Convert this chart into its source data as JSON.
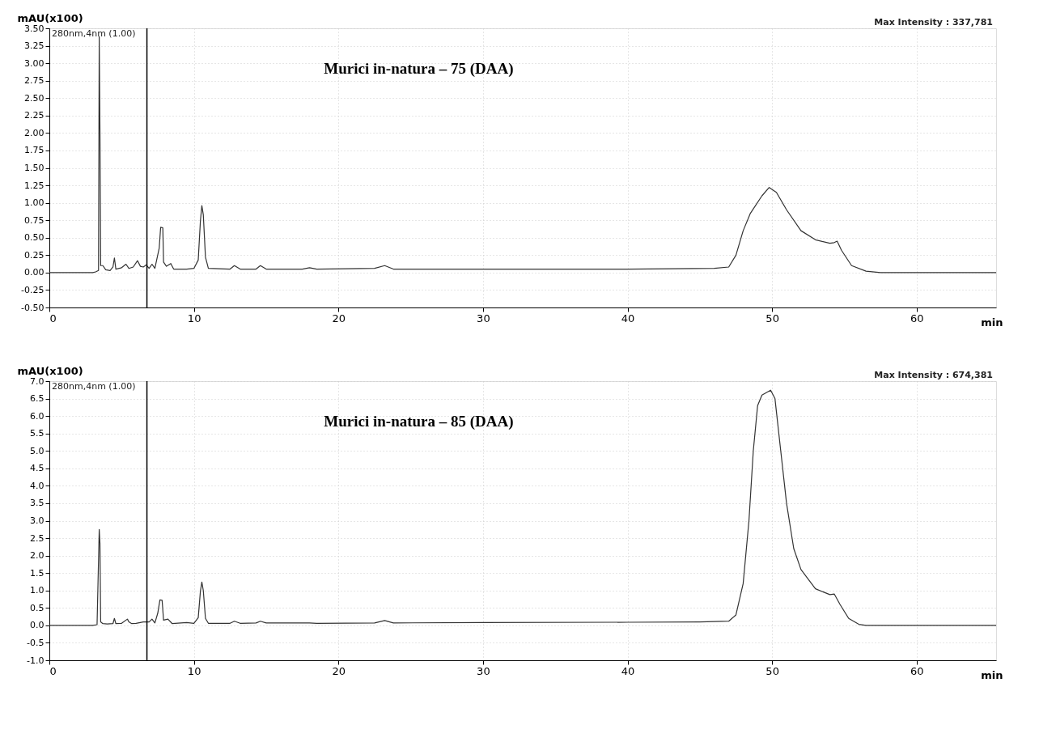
{
  "chart_data": [
    {
      "type": "line",
      "title": "Murici in-natura – 75 (DAA)",
      "xlabel": "min",
      "ylabel": "mAU(x100)",
      "annotations": [
        "280nm,4nm (1.00)",
        "Max Intensity : 337,781"
      ],
      "xlim": [
        0,
        65.5
      ],
      "xticks": [
        0,
        10,
        20,
        30,
        40,
        50,
        60
      ],
      "ylim": [
        -0.5,
        3.5
      ],
      "yticks": [
        {
          "value": -0.5,
          "label": "-0.50"
        },
        {
          "value": -0.25,
          "label": "-0.25"
        },
        {
          "value": 0,
          "label": "0.00"
        },
        {
          "value": 0.25,
          "label": "0.25"
        },
        {
          "value": 0.5,
          "label": "0.50"
        },
        {
          "value": 0.75,
          "label": "0.75"
        },
        {
          "value": 1,
          "label": "1.00"
        },
        {
          "value": 1.25,
          "label": "1.25"
        },
        {
          "value": 1.5,
          "label": "1.50"
        },
        {
          "value": 1.75,
          "label": "1.75"
        },
        {
          "value": 2,
          "label": "2.00"
        },
        {
          "value": 2.25,
          "label": "2.25"
        },
        {
          "value": 2.5,
          "label": "2.50"
        },
        {
          "value": 2.75,
          "label": "2.75"
        },
        {
          "value": 3,
          "label": "3.00"
        },
        {
          "value": 3.25,
          "label": "3.25"
        },
        {
          "value": 3.5,
          "label": "3.50"
        }
      ],
      "grid": true,
      "ref_lines": [
        {
          "axis": "x",
          "value": 6.75,
          "color": "#000000"
        }
      ],
      "series": [
        {
          "color": "#333333",
          "x": [
            0,
            3.0,
            3.2,
            3.4,
            3.45,
            3.5,
            3.55,
            3.7,
            3.9,
            4.2,
            4.4,
            4.5,
            4.6,
            5.0,
            5.3,
            5.5,
            5.8,
            6.1,
            6.3,
            6.5,
            6.7,
            6.9,
            7.1,
            7.3,
            7.6,
            7.7,
            7.85,
            7.9,
            8.1,
            8.4,
            8.6,
            9.5,
            10.0,
            10.3,
            10.45,
            10.55,
            10.65,
            10.8,
            11.0,
            12.5,
            12.8,
            13.2,
            14.3,
            14.6,
            15.0,
            17.5,
            18.0,
            18.5,
            22.5,
            23.2,
            23.8,
            29.5,
            40,
            46,
            47,
            47.5,
            48,
            48.5,
            49.3,
            49.8,
            50.3,
            51,
            52,
            53,
            54,
            54.3,
            54.5,
            54.8,
            55.5,
            56.5,
            57.5,
            65.5
          ],
          "values": [
            0,
            0,
            0.01,
            0.03,
            3.38,
            2.03,
            0.1,
            0.1,
            0.04,
            0.03,
            0.08,
            0.21,
            0.05,
            0.07,
            0.12,
            0.06,
            0.08,
            0.17,
            0.09,
            0.08,
            0.11,
            0.06,
            0.12,
            0.06,
            0.35,
            0.65,
            0.64,
            0.15,
            0.09,
            0.13,
            0.05,
            0.05,
            0.06,
            0.18,
            0.74,
            0.96,
            0.83,
            0.22,
            0.06,
            0.05,
            0.1,
            0.05,
            0.05,
            0.1,
            0.05,
            0.05,
            0.07,
            0.05,
            0.06,
            0.1,
            0.05,
            0.05,
            0.05,
            0.06,
            0.08,
            0.25,
            0.6,
            0.85,
            1.1,
            1.22,
            1.15,
            0.9,
            0.6,
            0.47,
            0.42,
            0.43,
            0.45,
            0.32,
            0.1,
            0.02,
            0,
            0
          ]
        }
      ]
    },
    {
      "type": "line",
      "title": "Murici in-natura – 85 (DAA)",
      "xlabel": "min",
      "ylabel": "mAU(x100)",
      "annotations": [
        "280nm,4nm (1.00)",
        "Max Intensity : 674,381"
      ],
      "xlim": [
        0,
        65.5
      ],
      "xticks": [
        0,
        10,
        20,
        30,
        40,
        50,
        60
      ],
      "ylim": [
        -1,
        7
      ],
      "yticks": [
        {
          "value": -1,
          "label": "-1.0"
        },
        {
          "value": -0.5,
          "label": "-0.5"
        },
        {
          "value": 0,
          "label": "0.0"
        },
        {
          "value": 0.5,
          "label": "0.5"
        },
        {
          "value": 1,
          "label": "1.0"
        },
        {
          "value": 1.5,
          "label": "1.5"
        },
        {
          "value": 2,
          "label": "2.0"
        },
        {
          "value": 2.5,
          "label": "2.5"
        },
        {
          "value": 3,
          "label": "3.0"
        },
        {
          "value": 3.5,
          "label": "3.5"
        },
        {
          "value": 4,
          "label": "4.0"
        },
        {
          "value": 4.5,
          "label": "4.5"
        },
        {
          "value": 5,
          "label": "5.0"
        },
        {
          "value": 5.5,
          "label": "5.5"
        },
        {
          "value": 6,
          "label": "6.0"
        },
        {
          "value": 6.5,
          "label": "6.5"
        },
        {
          "value": 7,
          "label": "7.0"
        }
      ],
      "grid": true,
      "ref_lines": [
        {
          "axis": "x",
          "value": 6.75,
          "color": "#000000"
        }
      ],
      "series": [
        {
          "color": "#333333",
          "x": [
            0,
            3.0,
            3.3,
            3.45,
            3.5,
            3.55,
            3.7,
            4.0,
            4.4,
            4.5,
            4.6,
            5.0,
            5.4,
            5.5,
            5.7,
            6.0,
            6.5,
            6.9,
            7.1,
            7.3,
            7.5,
            7.65,
            7.8,
            7.9,
            8.2,
            8.5,
            9.5,
            10.0,
            10.3,
            10.45,
            10.55,
            10.65,
            10.8,
            11.0,
            12.5,
            12.8,
            13.2,
            14.3,
            14.6,
            15.0,
            18.0,
            18.5,
            22.5,
            23.2,
            23.8,
            30,
            40,
            45,
            47,
            47.5,
            48,
            48.4,
            48.7,
            49,
            49.3,
            49.9,
            50.2,
            50.6,
            51,
            51.5,
            52,
            53,
            54,
            54.3,
            54.7,
            55.3,
            56,
            56.5,
            65.5
          ],
          "values": [
            0,
            0,
            0.02,
            2.75,
            2.35,
            0.1,
            0.05,
            0.04,
            0.05,
            0.2,
            0.05,
            0.06,
            0.18,
            0.1,
            0.05,
            0.06,
            0.1,
            0.1,
            0.18,
            0.07,
            0.35,
            0.73,
            0.72,
            0.15,
            0.18,
            0.05,
            0.08,
            0.06,
            0.22,
            0.98,
            1.24,
            1.0,
            0.2,
            0.06,
            0.06,
            0.12,
            0.06,
            0.07,
            0.12,
            0.07,
            0.07,
            0.06,
            0.07,
            0.14,
            0.07,
            0.08,
            0.09,
            0.1,
            0.12,
            0.3,
            1.2,
            3.0,
            5.0,
            6.3,
            6.6,
            6.74,
            6.5,
            5.0,
            3.5,
            2.2,
            1.6,
            1.05,
            0.88,
            0.9,
            0.6,
            0.2,
            0.03,
            0,
            0
          ]
        }
      ]
    }
  ]
}
